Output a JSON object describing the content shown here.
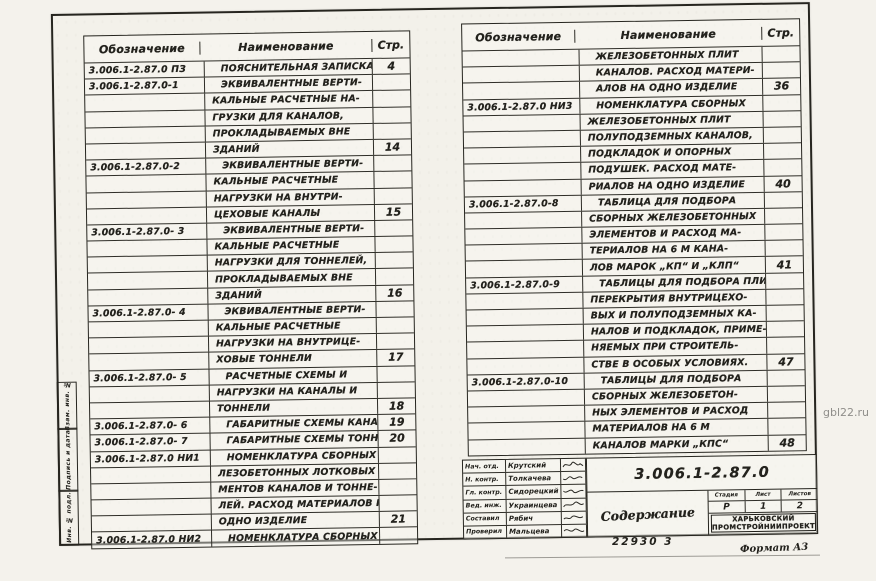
{
  "watermark": "gbl22.ru",
  "footer": {
    "number": "22930  3",
    "format": "Формат А3"
  },
  "side_stamp": {
    "items": [
      "Взам. инв. №",
      "Подпись и дата",
      "Инв. № подл."
    ]
  },
  "left_table": {
    "headers": {
      "designation": "Обозначение",
      "name": "Наименование",
      "page": "Стр."
    },
    "indent_first_rows": 0,
    "rows": [
      [
        "3.006.1-2.87.0 ПЗ",
        "Пояснительная записка",
        "4"
      ],
      [
        "3.006.1-2.87.0-1",
        "Эквивалентные верти-",
        ""
      ],
      [
        "",
        "кальные расчетные на-",
        ""
      ],
      [
        "",
        "грузки для каналов,",
        ""
      ],
      [
        "",
        "прокладываемых вне",
        ""
      ],
      [
        "",
        "зданий",
        "14"
      ],
      [
        "3.006.1-2.87.0-2",
        "Эквивалентные верти-",
        ""
      ],
      [
        "",
        "кальные расчетные",
        ""
      ],
      [
        "",
        "нагрузки на внутри-",
        ""
      ],
      [
        "",
        "цеховые каналы",
        "15"
      ],
      [
        "3.006.1-2.87.0- 3",
        "Эквивалентные верти-",
        ""
      ],
      [
        "",
        "кальные расчетные",
        ""
      ],
      [
        "",
        "нагрузки для тоннелей,",
        ""
      ],
      [
        "",
        "прокладываемых вне",
        ""
      ],
      [
        "",
        "зданий",
        "16"
      ],
      [
        "3.006.1-2.87.0- 4",
        "Эквивалентные верти-",
        ""
      ],
      [
        "",
        "кальные расчетные",
        ""
      ],
      [
        "",
        "нагрузки на внутрице-",
        ""
      ],
      [
        "",
        "ховые тоннели",
        "17"
      ],
      [
        "3.006.1-2.87.0- 5",
        "Расчетные схемы и",
        ""
      ],
      [
        "",
        "нагрузки на каналы и",
        ""
      ],
      [
        "",
        "тоннели",
        "18"
      ],
      [
        "3.006.1-2.87.0- 6",
        "Габаритные схемы каналов",
        "19"
      ],
      [
        "3.006.1-2.87.0- 7",
        "Габаритные схемы тоннелей",
        "20"
      ],
      [
        "3.006.1-2.87.0 НИ1",
        "Номенклатура сборных же-",
        ""
      ],
      [
        "",
        "лезобетонных лотковых эле-",
        ""
      ],
      [
        "",
        "ментов каналов и тонне-",
        ""
      ],
      [
        "",
        "лей. Расход материалов на",
        ""
      ],
      [
        "",
        "одно изделие",
        "21"
      ],
      [
        "3.006.1-2.87.0 НИ2",
        "Номенклатура сборных",
        ""
      ]
    ]
  },
  "right_table": {
    "headers": {
      "designation": "Обозначение",
      "name": "Наименование",
      "page": "Стр."
    },
    "indent_first_rows": 3,
    "rows": [
      [
        "",
        "железобетонных плит",
        ""
      ],
      [
        "",
        "каналов. Расход матери-",
        ""
      ],
      [
        "",
        "алов на одно изделие",
        "36"
      ],
      [
        "3.006.1-2.87.0 НИ3",
        "Номенклатура сборных",
        ""
      ],
      [
        "",
        "железобетонных плит",
        ""
      ],
      [
        "",
        "полуподземных каналов,",
        ""
      ],
      [
        "",
        "подкладок и опорных",
        ""
      ],
      [
        "",
        "подушек. Расход мате-",
        ""
      ],
      [
        "",
        "риалов на одно изделие",
        "40"
      ],
      [
        "3.006.1-2.87.0-8",
        "Таблица для подбора",
        ""
      ],
      [
        "",
        "сборных железобетонных",
        ""
      ],
      [
        "",
        "элементов и расход ма-",
        ""
      ],
      [
        "",
        "териалов на 6 м кана-",
        ""
      ],
      [
        "",
        "лов марок „КП“ и „КЛп“",
        "41"
      ],
      [
        "3.006.1-2.87.0-9",
        "Таблицы для подбора плит",
        ""
      ],
      [
        "",
        "перекрытия внутрицехо-",
        ""
      ],
      [
        "",
        "вых и полуподземных ка-",
        ""
      ],
      [
        "",
        "налов и подкладок, приме-",
        ""
      ],
      [
        "",
        "няемых при строитель-",
        ""
      ],
      [
        "",
        "стве в особых условиях.",
        "47"
      ],
      [
        "3.006.1-2.87.0-10",
        "Таблицы для подбора",
        ""
      ],
      [
        "",
        "сборных железобетон-",
        ""
      ],
      [
        "",
        "ных элементов и расход",
        ""
      ],
      [
        "",
        "материалов на 6 м",
        ""
      ],
      [
        "",
        "каналов марки „КПс“",
        "48"
      ]
    ]
  },
  "title_block": {
    "doc_number": "3.006.1-2.87.0",
    "title": "Содержание",
    "signers": [
      {
        "role": "Нач. отд.",
        "name": "Крутский"
      },
      {
        "role": "Н. контр.",
        "name": "Толкачева"
      },
      {
        "role": "Гл. контр.",
        "name": "Сидорецкий"
      },
      {
        "role": "Вед. инж.",
        "name": "Украинцева"
      },
      {
        "role": "Составил",
        "name": "Рябич"
      },
      {
        "role": "Проверил",
        "name": "Мальцева"
      }
    ],
    "stage_table": {
      "headers": [
        "Стадия",
        "Лист",
        "Листов"
      ],
      "values": [
        "Р",
        "1",
        "2"
      ]
    },
    "org_line1": "Харьковский",
    "org_line2": "Промстройниипроект"
  }
}
